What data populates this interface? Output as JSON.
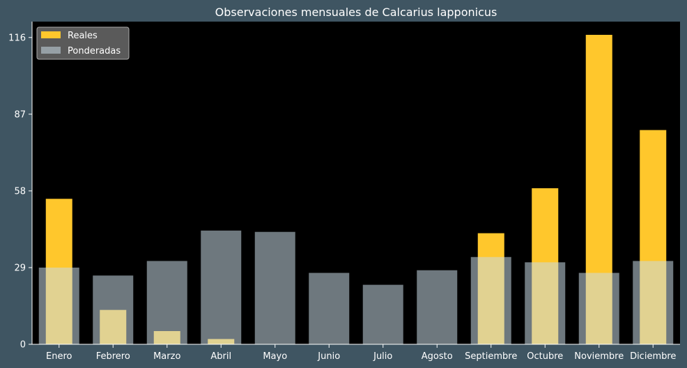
{
  "chart_data": {
    "type": "bar",
    "title": "Observaciones mensuales de Calcarius lapponicus",
    "xlabel": "",
    "ylabel": "",
    "categories": [
      "Enero",
      "Febrero",
      "Marzo",
      "Abril",
      "Mayo",
      "Junio",
      "Julio",
      "Agosto",
      "Septiembre",
      "Octubre",
      "Noviembre",
      "Diciembre"
    ],
    "ylim": [
      0,
      122
    ],
    "yticks": [
      0,
      29,
      58,
      87,
      116
    ],
    "ytick_labels": [
      "0",
      "29",
      "58",
      "87",
      "116"
    ],
    "series": [
      {
        "name": "Reales",
        "color": "#ffc72c",
        "values": [
          55,
          13,
          5,
          2,
          0,
          0,
          0,
          0,
          42,
          59,
          117,
          81
        ]
      },
      {
        "name": "Ponderadas",
        "color": "#c8dbe5",
        "opacity": 0.55,
        "values": [
          29,
          26,
          31.5,
          43,
          42.5,
          27,
          22.5,
          28,
          33,
          31,
          27,
          31.5
        ]
      }
    ],
    "legend": {
      "position": "top-left"
    },
    "grid": false,
    "colors": {
      "plot_background": "#000000",
      "figure_background": "#3f5562",
      "text": "#ffffff"
    }
  }
}
